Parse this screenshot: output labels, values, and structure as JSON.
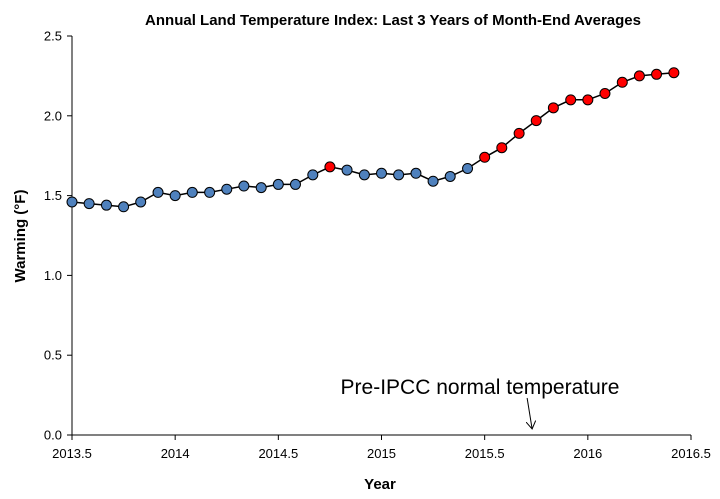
{
  "chart_data": {
    "type": "scatter",
    "title": "Annual Land Temperature Index: Last 3 Years of Month-End Averages",
    "xlabel": "Year",
    "ylabel": "Warming (°F)",
    "xlim": [
      2013.5,
      2016.5
    ],
    "ylim": [
      0.0,
      2.5
    ],
    "x_ticks": [
      2013.5,
      2014,
      2014.5,
      2015,
      2015.5,
      2016,
      2016.5
    ],
    "x_tick_labels": [
      "2013.5",
      "2014",
      "2014.5",
      "2015",
      "2015.5",
      "2016",
      "2016.5"
    ],
    "y_ticks": [
      0.0,
      0.5,
      1.0,
      1.5,
      2.0,
      2.5
    ],
    "y_tick_labels": [
      "0.0",
      "0.5",
      "1.0",
      "1.5",
      "2.0",
      "2.5"
    ],
    "grid": false,
    "connecting_line": true,
    "colors": {
      "blue": "#4f81bd",
      "red": "#ff0000",
      "line": "#000000"
    },
    "points": [
      {
        "x": 2013.5,
        "y": 1.46,
        "color": "blue"
      },
      {
        "x": 2013.583,
        "y": 1.45,
        "color": "blue"
      },
      {
        "x": 2013.667,
        "y": 1.44,
        "color": "blue"
      },
      {
        "x": 2013.75,
        "y": 1.43,
        "color": "blue"
      },
      {
        "x": 2013.833,
        "y": 1.46,
        "color": "blue"
      },
      {
        "x": 2013.917,
        "y": 1.52,
        "color": "blue"
      },
      {
        "x": 2014.0,
        "y": 1.5,
        "color": "blue"
      },
      {
        "x": 2014.083,
        "y": 1.52,
        "color": "blue"
      },
      {
        "x": 2014.167,
        "y": 1.52,
        "color": "blue"
      },
      {
        "x": 2014.25,
        "y": 1.54,
        "color": "blue"
      },
      {
        "x": 2014.333,
        "y": 1.56,
        "color": "blue"
      },
      {
        "x": 2014.417,
        "y": 1.55,
        "color": "blue"
      },
      {
        "x": 2014.5,
        "y": 1.57,
        "color": "blue"
      },
      {
        "x": 2014.583,
        "y": 1.57,
        "color": "blue"
      },
      {
        "x": 2014.667,
        "y": 1.63,
        "color": "blue"
      },
      {
        "x": 2014.75,
        "y": 1.68,
        "color": "red"
      },
      {
        "x": 2014.833,
        "y": 1.66,
        "color": "blue"
      },
      {
        "x": 2014.917,
        "y": 1.63,
        "color": "blue"
      },
      {
        "x": 2015.0,
        "y": 1.64,
        "color": "blue"
      },
      {
        "x": 2015.083,
        "y": 1.63,
        "color": "blue"
      },
      {
        "x": 2015.167,
        "y": 1.64,
        "color": "blue"
      },
      {
        "x": 2015.25,
        "y": 1.59,
        "color": "blue"
      },
      {
        "x": 2015.333,
        "y": 1.62,
        "color": "blue"
      },
      {
        "x": 2015.417,
        "y": 1.67,
        "color": "blue"
      },
      {
        "x": 2015.5,
        "y": 1.74,
        "color": "red"
      },
      {
        "x": 2015.583,
        "y": 1.8,
        "color": "red"
      },
      {
        "x": 2015.667,
        "y": 1.89,
        "color": "red"
      },
      {
        "x": 2015.75,
        "y": 1.97,
        "color": "red"
      },
      {
        "x": 2015.833,
        "y": 2.05,
        "color": "red"
      },
      {
        "x": 2015.917,
        "y": 2.1,
        "color": "red"
      },
      {
        "x": 2016.0,
        "y": 2.1,
        "color": "red"
      },
      {
        "x": 2016.083,
        "y": 2.14,
        "color": "red"
      },
      {
        "x": 2016.167,
        "y": 2.21,
        "color": "red"
      },
      {
        "x": 2016.25,
        "y": 2.25,
        "color": "red"
      },
      {
        "x": 2016.333,
        "y": 2.26,
        "color": "red"
      },
      {
        "x": 2016.417,
        "y": 2.27,
        "color": "red"
      }
    ],
    "annotations": [
      {
        "text": "Pre-IPCC normal temperature",
        "arrow_to": {
          "x": 2015.73,
          "y": 0.0
        }
      }
    ]
  }
}
